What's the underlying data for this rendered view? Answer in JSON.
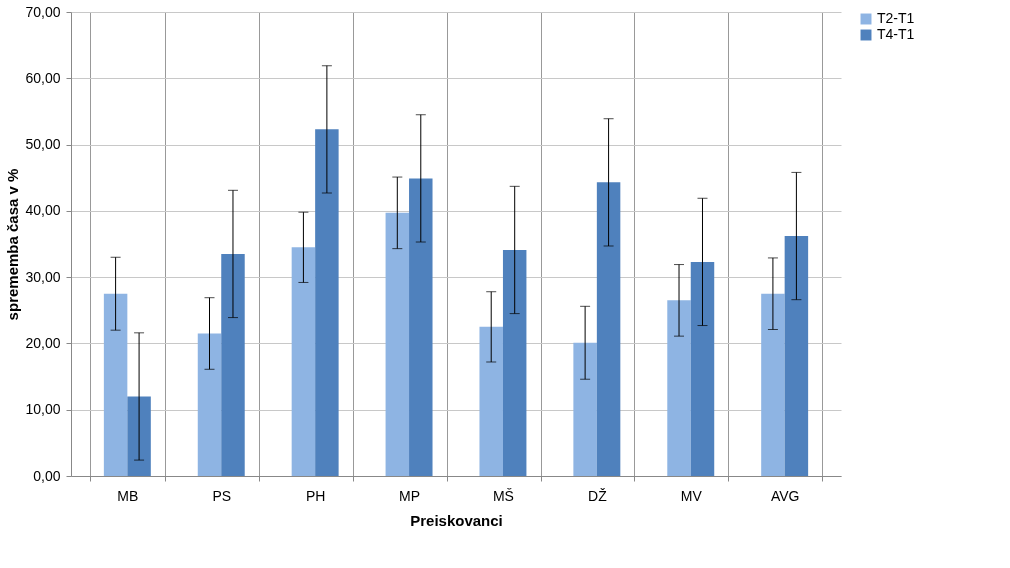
{
  "chart_data": {
    "type": "bar",
    "xlabel": "Preiskovanci",
    "ylabel": "sprememba časa v %",
    "categories": [
      "MB",
      "PS",
      "PH",
      "MP",
      "MŠ",
      "DŽ",
      "MV",
      "AVG"
    ],
    "series": [
      {
        "name": "T2-T1",
        "color": "#8eb4e3",
        "values": [
          27.5,
          21.5,
          34.5,
          39.7,
          22.5,
          20.1,
          26.5,
          27.5
        ],
        "errors": [
          5.5,
          5.4,
          5.3,
          5.4,
          5.3,
          5.5,
          5.4,
          5.4
        ]
      },
      {
        "name": "T4-T1",
        "color": "#4f81bd",
        "values": [
          12.0,
          33.5,
          52.3,
          44.9,
          34.1,
          44.3,
          32.3,
          36.2
        ],
        "errors": [
          9.6,
          9.6,
          9.6,
          9.6,
          9.6,
          9.6,
          9.6,
          9.6
        ]
      }
    ],
    "ylim": [
      0,
      70
    ],
    "yticks": [
      {
        "value": 0,
        "label": "0,00"
      },
      {
        "value": 10,
        "label": "10,00"
      },
      {
        "value": 20,
        "label": "20,00"
      },
      {
        "value": 30,
        "label": "30,00"
      },
      {
        "value": 40,
        "label": "40,00"
      },
      {
        "value": 50,
        "label": "50,00"
      },
      {
        "value": 60,
        "label": "60,00"
      },
      {
        "value": 70,
        "label": "70,00"
      }
    ],
    "grid": true,
    "legend": "right"
  }
}
